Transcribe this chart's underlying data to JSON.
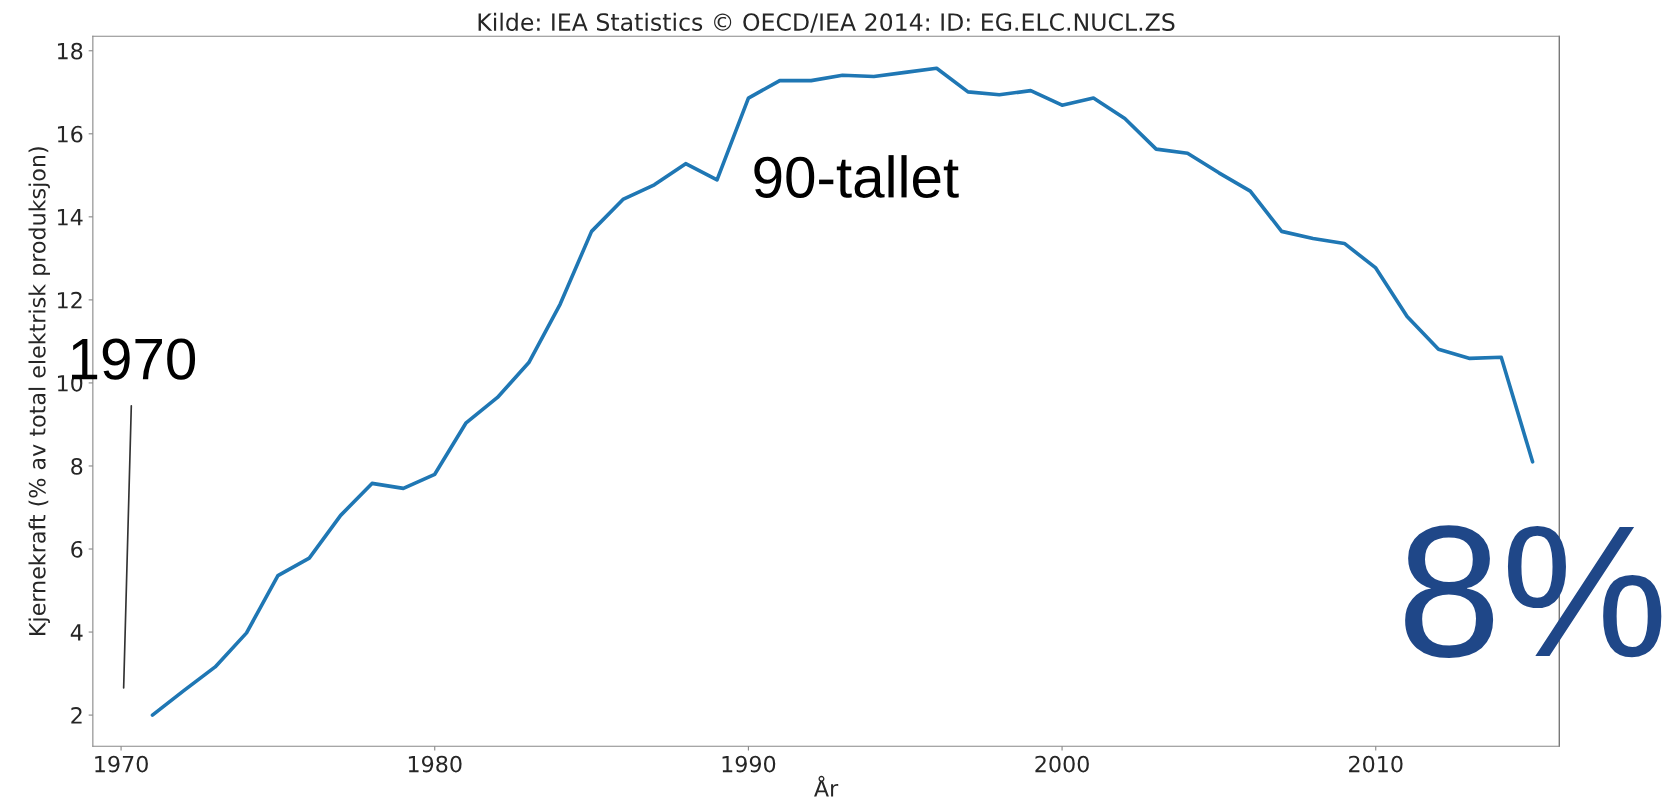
{
  "chart_data": {
    "type": "line",
    "title": "Kilde: IEA Statistics © OECD/IEA 2014: ID: EG.ELC.NUCL.ZS",
    "xlabel": "År",
    "ylabel": "Kjernekraft (% av total elektrisk produksjon)",
    "x": [
      1971,
      1972,
      1973,
      1974,
      1975,
      1976,
      1977,
      1978,
      1979,
      1980,
      1981,
      1982,
      1983,
      1984,
      1985,
      1986,
      1987,
      1988,
      1989,
      1990,
      1991,
      1992,
      1993,
      1994,
      1995,
      1996,
      1997,
      1998,
      1999,
      2000,
      2001,
      2002,
      2003,
      2004,
      2005,
      2006,
      2007,
      2008,
      2009,
      2010,
      2011,
      2012,
      2013,
      2014,
      2015
    ],
    "series": [
      {
        "color": "#1f77b4",
        "values": [
          2.0,
          2.59,
          3.16,
          3.98,
          5.36,
          5.78,
          6.81,
          7.58,
          7.46,
          7.8,
          9.04,
          9.65,
          10.49,
          11.9,
          13.65,
          14.42,
          14.77,
          15.28,
          14.89,
          16.86,
          17.28,
          17.28,
          17.41,
          17.38,
          17.48,
          17.58,
          17.01,
          16.94,
          17.04,
          16.69,
          16.86,
          16.37,
          15.63,
          15.53,
          15.06,
          14.62,
          13.65,
          13.48,
          13.36,
          12.77,
          11.6,
          10.81,
          10.59,
          10.62,
          8.1
        ]
      }
    ],
    "xlim": [
      1969.1,
      2015.85
    ],
    "ylim": [
      1.25,
      18.35
    ],
    "xticks": [
      1970,
      1980,
      1990,
      2000,
      2010
    ],
    "yticks": [
      2,
      4,
      6,
      8,
      10,
      12,
      14,
      16,
      18
    ],
    "annotations": [
      "1970",
      "90-tallet",
      "8%"
    ],
    "grid": false,
    "legend": false
  }
}
